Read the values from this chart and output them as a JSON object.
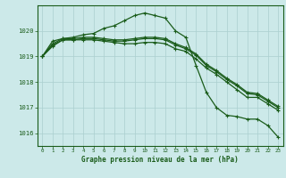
{
  "title": "Graphe pression niveau de la mer (hPa)",
  "background_color": "#cce9e9",
  "plot_background": "#cce9e9",
  "grid_color": "#aacfcf",
  "line_color": "#1a5c1a",
  "marker_color": "#1a5c1a",
  "x_labels": [
    "0",
    "1",
    "2",
    "3",
    "4",
    "5",
    "6",
    "7",
    "8",
    "9",
    "10",
    "11",
    "12",
    "13",
    "14",
    "15",
    "16",
    "17",
    "18",
    "19",
    "20",
    "21",
    "22",
    "23"
  ],
  "ylim": [
    1015.5,
    1021.0
  ],
  "yticks": [
    1016,
    1017,
    1018,
    1019,
    1020
  ],
  "series": [
    [
      1019.0,
      1019.4,
      1019.65,
      1019.65,
      1019.65,
      1019.65,
      1019.6,
      1019.55,
      1019.5,
      1019.5,
      1019.55,
      1019.55,
      1019.5,
      1019.3,
      1019.2,
      1018.9,
      1018.55,
      1018.3,
      1018.0,
      1017.7,
      1017.4,
      1017.4,
      1017.15,
      1016.9
    ],
    [
      1019.0,
      1019.45,
      1019.65,
      1019.65,
      1019.7,
      1019.7,
      1019.65,
      1019.6,
      1019.6,
      1019.65,
      1019.7,
      1019.7,
      1019.65,
      1019.45,
      1019.3,
      1019.05,
      1018.65,
      1018.4,
      1018.1,
      1017.85,
      1017.55,
      1017.5,
      1017.25,
      1017.0
    ],
    [
      1019.0,
      1019.5,
      1019.7,
      1019.7,
      1019.75,
      1019.75,
      1019.7,
      1019.65,
      1019.65,
      1019.7,
      1019.75,
      1019.75,
      1019.7,
      1019.5,
      1019.35,
      1019.1,
      1018.7,
      1018.45,
      1018.15,
      1017.9,
      1017.6,
      1017.55,
      1017.3,
      1017.05
    ],
    [
      1019.0,
      1019.6,
      1019.7,
      1019.75,
      1019.85,
      1019.9,
      1020.1,
      1020.2,
      1020.4,
      1020.6,
      1020.7,
      1020.6,
      1020.5,
      1020.0,
      1019.75,
      1018.65,
      1017.6,
      1017.0,
      1016.7,
      1016.65,
      1016.55,
      1016.55,
      1016.3,
      1015.85
    ]
  ]
}
